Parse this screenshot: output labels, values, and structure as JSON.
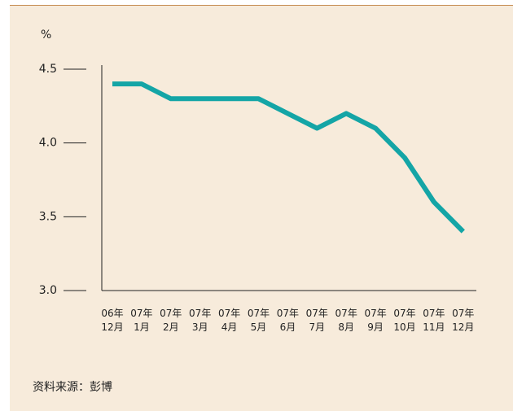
{
  "chart_data": {
    "type": "line",
    "unit": "%",
    "source": "资料来源：彭博",
    "categories": [
      "06年\n12月",
      "07年\n1月",
      "07年\n2月",
      "07年\n3月",
      "07年\n4月",
      "07年\n5月",
      "07年\n6月",
      "07年\n7月",
      "07年\n8月",
      "07年\n9月",
      "07年\n10月",
      "07年\n11月",
      "07年\n12月"
    ],
    "values": [
      4.4,
      4.4,
      4.3,
      4.3,
      4.3,
      4.3,
      4.2,
      4.1,
      4.2,
      4.1,
      3.9,
      3.6,
      3.4
    ],
    "color": "#14a5a6",
    "ylim": [
      3,
      4.5
    ],
    "yticks": [
      {
        "value": 3,
        "label": "3.0"
      },
      3.5,
      {
        "value": 4,
        "label": "4.0"
      },
      4.5
    ]
  }
}
